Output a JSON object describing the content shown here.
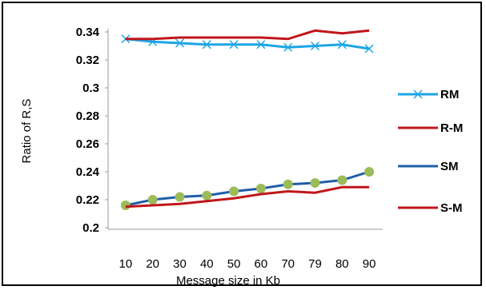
{
  "chart_data": {
    "type": "line",
    "title": "",
    "xlabel": "Message size in Kb",
    "ylabel": "Ratio of R,S",
    "categories": [
      "10",
      "20",
      "30",
      "40",
      "50",
      "60",
      "70",
      "79",
      "80",
      "90"
    ],
    "y_ticks": [
      "0.2",
      "0.22",
      "0.24",
      "0.26",
      "0.28",
      "0.3",
      "0.32",
      "0.34"
    ],
    "ylim": [
      0.2,
      0.34
    ],
    "grid": false,
    "legend_position": "right",
    "series": [
      {
        "name": "RM",
        "color": "#1ea5e6",
        "marker": "x",
        "values": [
          0.335,
          0.333,
          0.332,
          0.331,
          0.331,
          0.331,
          0.329,
          0.33,
          0.331,
          0.328
        ]
      },
      {
        "name": "R-M",
        "color": "#c0161b",
        "marker": "none",
        "values": [
          0.335,
          0.335,
          0.336,
          0.336,
          0.336,
          0.336,
          0.335,
          0.341,
          0.339,
          0.341
        ]
      },
      {
        "name": "SM",
        "color": "#1f5fa8",
        "marker": "circle",
        "marker_color": "#9bbb59",
        "values": [
          0.216,
          0.22,
          0.222,
          0.223,
          0.226,
          0.228,
          0.231,
          0.232,
          0.234,
          0.24
        ]
      },
      {
        "name": "S-M",
        "color": "#c0161b",
        "marker": "none",
        "values": [
          0.215,
          0.216,
          0.217,
          0.219,
          0.221,
          0.224,
          0.226,
          0.225,
          0.229,
          0.229
        ]
      }
    ]
  }
}
